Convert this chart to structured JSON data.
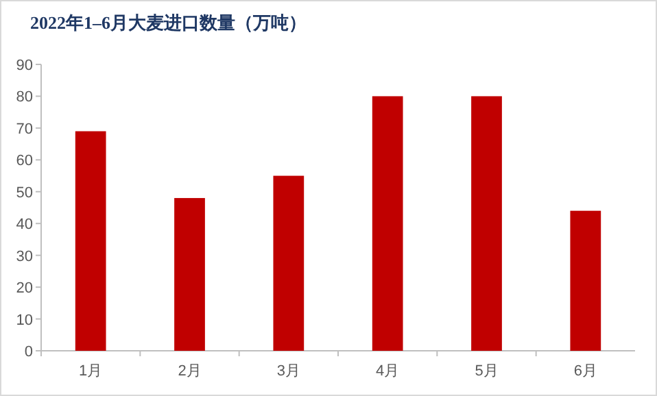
{
  "chart_data": {
    "type": "bar",
    "title": "2022年1–6月大麦进口数量（万吨）",
    "categories": [
      "1月",
      "2月",
      "3月",
      "4月",
      "5月",
      "6月"
    ],
    "values": [
      69,
      48,
      55,
      80,
      80,
      44
    ],
    "color": "#c00000",
    "ylim": [
      0,
      90
    ],
    "yticks": [
      0,
      10,
      20,
      30,
      40,
      50,
      60,
      70,
      80,
      90
    ],
    "grid": false
  }
}
